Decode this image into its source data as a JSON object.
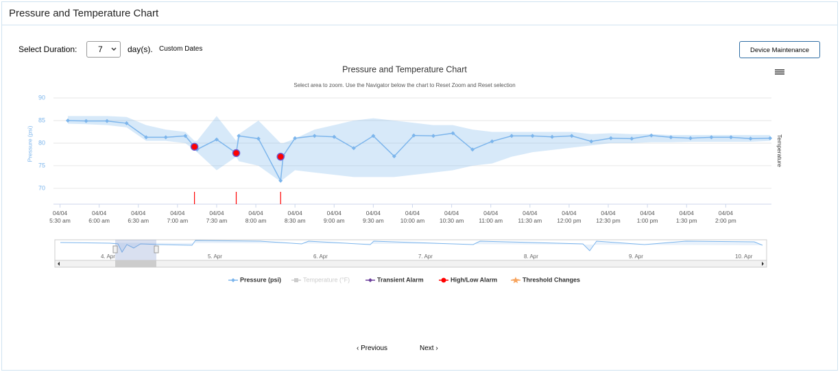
{
  "header": {
    "title": "Pressure and Temperature Chart"
  },
  "controls": {
    "duration_label": "Select Duration:",
    "duration_value": "7",
    "duration_unit": "day(s).",
    "custom_dates": "Custom Dates",
    "maintenance_button": "Device Maintenance"
  },
  "chart_data": {
    "type": "line",
    "title": "Pressure and Temperature Chart",
    "subtitle": "Select area to zoom. Use the Navigator below the chart to Reset Zoom and Reset selection",
    "y_label": "Pressure (psi)",
    "y2_label": "Temperature",
    "xlim": [
      325,
      875
    ],
    "ylim": [
      66.5,
      90
    ],
    "yticks": [
      70,
      75,
      80,
      85,
      90
    ],
    "grid": true,
    "xticks": [
      {
        "value": 330,
        "label": "04/04\n5:30 am"
      },
      {
        "value": 360,
        "label": "04/04\n6:00 am"
      },
      {
        "value": 390,
        "label": "04/04\n6:30 am"
      },
      {
        "value": 420,
        "label": "04/04\n7:00 am"
      },
      {
        "value": 450,
        "label": "04/04\n7:30 am"
      },
      {
        "value": 480,
        "label": "04/04\n8:00 am"
      },
      {
        "value": 510,
        "label": "04/04\n8:30 am"
      },
      {
        "value": 540,
        "label": "04/04\n9:00 am"
      },
      {
        "value": 570,
        "label": "04/04\n9:30 am"
      },
      {
        "value": 600,
        "label": "04/04\n10:00 am"
      },
      {
        "value": 630,
        "label": "04/04\n10:30 am"
      },
      {
        "value": 660,
        "label": "04/04\n11:00 am"
      },
      {
        "value": 690,
        "label": "04/04\n11:30 am"
      },
      {
        "value": 720,
        "label": "04/04\n12:00 pm"
      },
      {
        "value": 750,
        "label": "04/04\n12:30 pm"
      },
      {
        "value": 780,
        "label": "04/04\n1:00 pm"
      },
      {
        "value": 810,
        "label": "04/04\n1:30 pm"
      },
      {
        "value": 840,
        "label": "04/04\n2:00 pm"
      }
    ],
    "x": [
      336,
      350,
      366,
      381,
      396,
      411,
      426,
      433,
      435,
      450,
      465,
      467,
      482,
      499,
      501,
      510,
      525,
      540,
      555,
      570,
      586,
      601,
      616,
      631,
      646,
      661,
      676,
      692,
      707,
      722,
      737,
      752,
      768,
      783,
      798,
      813,
      829,
      844,
      859,
      874
    ],
    "series": [
      {
        "name": "Pressure (psi)",
        "color": "#7cb5ec",
        "values": [
          85.0,
          84.9,
          84.9,
          84.4,
          81.3,
          81.3,
          81.6,
          79.2,
          78.6,
          80.8,
          77.8,
          81.6,
          81.0,
          71.7,
          77.2,
          81.1,
          81.6,
          81.4,
          78.9,
          81.6,
          77.1,
          81.7,
          81.6,
          82.2,
          78.6,
          80.4,
          81.6,
          81.6,
          81.4,
          81.6,
          80.4,
          81.1,
          81.0,
          81.7,
          81.3,
          81.1,
          81.3,
          81.3,
          81.0,
          81.1
        ],
        "low": [
          84.3,
          84.2,
          84.0,
          83.5,
          80.5,
          80.5,
          80.0,
          78.5,
          78.0,
          74.0,
          77.0,
          76.0,
          75.0,
          71.5,
          72.0,
          74.0,
          73.5,
          73.0,
          72.5,
          72.5,
          72.5,
          73.0,
          73.5,
          74.0,
          75.0,
          75.5,
          77.0,
          78.0,
          78.5,
          79.0,
          79.5,
          80.0,
          80.0,
          80.2,
          80.2,
          80.3,
          80.3,
          80.3,
          80.3,
          80.5
        ],
        "high": [
          86.0,
          86.0,
          86.0,
          85.8,
          84.0,
          83.0,
          82.5,
          80.5,
          80.5,
          86.0,
          80.5,
          82.0,
          85.0,
          80.0,
          80.0,
          81.0,
          83.0,
          84.0,
          85.0,
          85.5,
          85.0,
          84.5,
          84.0,
          84.0,
          83.0,
          82.5,
          82.5,
          82.5,
          82.5,
          82.5,
          82.0,
          82.2,
          82.0,
          82.0,
          81.8,
          81.8,
          81.8,
          81.8,
          81.8,
          81.8
        ]
      },
      {
        "name": "High/Low Alarm",
        "color": "#ff0000",
        "x": [
          433,
          465,
          499
        ],
        "values": [
          79.2,
          77.8,
          77.0
        ]
      }
    ],
    "legend_others": [
      {
        "name": "Temperature (°F)",
        "color": "#cccccc"
      },
      {
        "name": "Transient Alarm",
        "color": "#6a3d9a"
      },
      {
        "name": "Threshold Changes",
        "color": "#f7a35c"
      }
    ],
    "navigator": {
      "labels": [
        "4. Apr",
        "5. Apr",
        "6. Apr",
        "7. Apr",
        "8. Apr",
        "9. Apr",
        "10. Apr"
      ]
    }
  },
  "pagination": {
    "previous": "Previous",
    "next": "Next"
  }
}
